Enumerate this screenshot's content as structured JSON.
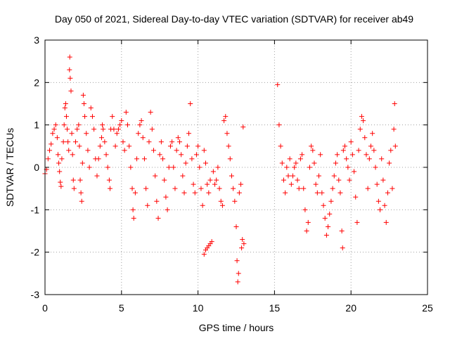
{
  "chart_data": {
    "type": "scatter",
    "title": "Day 050 of 2021, Sidereal Day-to-day VTEC variation (SDTVAR) for receiver ab49",
    "xlabel": "GPS time / hours",
    "ylabel": "SDTVAR / TECUs",
    "xlim": [
      0,
      25
    ],
    "ylim": [
      -3,
      3
    ],
    "xticks": [
      0,
      5,
      10,
      15,
      20,
      25
    ],
    "xtick_labels": [
      "0",
      "5",
      "10",
      "15",
      "20",
      "25"
    ],
    "yticks": [
      -3,
      -2,
      -1,
      0,
      1,
      2,
      3
    ],
    "ytick_labels": [
      "-3",
      "-2",
      "-1",
      "0",
      "1",
      "2",
      "3"
    ],
    "grid": true,
    "marker": "+",
    "color": "#ff0000",
    "series": [
      {
        "name": "SDTVAR",
        "points": [
          [
            0.0,
            -0.15
          ],
          [
            0.1,
            -0.05
          ],
          [
            0.2,
            0.2
          ],
          [
            0.3,
            0.4
          ],
          [
            0.4,
            0.55
          ],
          [
            0.5,
            0.8
          ],
          [
            0.6,
            0.9
          ],
          [
            0.7,
            1.0
          ],
          [
            0.8,
            0.7
          ],
          [
            0.85,
            0.3
          ],
          [
            0.9,
            0.1
          ],
          [
            0.95,
            -0.1
          ],
          [
            1.0,
            -0.35
          ],
          [
            1.05,
            -0.45
          ],
          [
            1.1,
            0.2
          ],
          [
            1.2,
            0.6
          ],
          [
            1.25,
            1.0
          ],
          [
            1.3,
            1.4
          ],
          [
            1.35,
            1.5
          ],
          [
            1.4,
            1.2
          ],
          [
            1.45,
            0.9
          ],
          [
            1.5,
            0.6
          ],
          [
            1.55,
            0.4
          ],
          [
            1.6,
            2.3
          ],
          [
            1.62,
            2.6
          ],
          [
            1.65,
            2.1
          ],
          [
            1.7,
            1.8
          ],
          [
            1.75,
            0.8
          ],
          [
            1.8,
            0.3
          ],
          [
            1.85,
            -0.3
          ],
          [
            1.9,
            -0.5
          ],
          [
            2.0,
            0.6
          ],
          [
            2.1,
            0.9
          ],
          [
            2.2,
            1.0
          ],
          [
            2.25,
            0.5
          ],
          [
            2.3,
            -0.3
          ],
          [
            2.35,
            -0.6
          ],
          [
            2.4,
            -0.8
          ],
          [
            2.45,
            0.1
          ],
          [
            2.5,
            1.7
          ],
          [
            2.55,
            1.5
          ],
          [
            2.6,
            1.2
          ],
          [
            2.7,
            0.8
          ],
          [
            2.8,
            0.4
          ],
          [
            2.9,
            0.0
          ],
          [
            3.0,
            1.4
          ],
          [
            3.1,
            1.2
          ],
          [
            3.2,
            0.9
          ],
          [
            3.3,
            0.2
          ],
          [
            3.4,
            -0.2
          ],
          [
            3.5,
            0.2
          ],
          [
            3.6,
            0.5
          ],
          [
            3.7,
            0.7
          ],
          [
            3.75,
            1.0
          ],
          [
            3.8,
            0.9
          ],
          [
            3.9,
            0.6
          ],
          [
            4.0,
            0.3
          ],
          [
            4.1,
            0.0
          ],
          [
            4.2,
            -0.3
          ],
          [
            4.25,
            -0.5
          ],
          [
            4.3,
            0.9
          ],
          [
            4.4,
            1.2
          ],
          [
            4.5,
            0.9
          ],
          [
            4.6,
            0.5
          ],
          [
            4.7,
            0.8
          ],
          [
            4.8,
            0.9
          ],
          [
            4.9,
            1.0
          ],
          [
            5.0,
            1.1
          ],
          [
            5.1,
            0.6
          ],
          [
            5.2,
            0.4
          ],
          [
            5.3,
            1.3
          ],
          [
            5.4,
            1.0
          ],
          [
            5.5,
            0.5
          ],
          [
            5.6,
            0.0
          ],
          [
            5.7,
            -0.5
          ],
          [
            5.75,
            -1.0
          ],
          [
            5.8,
            -1.2
          ],
          [
            5.9,
            -0.6
          ],
          [
            6.0,
            0.2
          ],
          [
            6.1,
            0.8
          ],
          [
            6.2,
            1.0
          ],
          [
            6.3,
            1.1
          ],
          [
            6.4,
            0.7
          ],
          [
            6.5,
            0.2
          ],
          [
            6.6,
            -0.5
          ],
          [
            6.7,
            -0.9
          ],
          [
            6.8,
            0.6
          ],
          [
            6.9,
            1.3
          ],
          [
            7.0,
            0.9
          ],
          [
            7.1,
            0.4
          ],
          [
            7.2,
            -0.2
          ],
          [
            7.3,
            -0.8
          ],
          [
            7.4,
            -1.2
          ],
          [
            7.5,
            0.3
          ],
          [
            7.6,
            0.6
          ],
          [
            7.7,
            0.2
          ],
          [
            7.8,
            -0.3
          ],
          [
            7.9,
            -0.7
          ],
          [
            8.0,
            -1.0
          ],
          [
            8.1,
            0.0
          ],
          [
            8.2,
            0.5
          ],
          [
            8.3,
            0.6
          ],
          [
            8.4,
            0.0
          ],
          [
            8.5,
            -0.5
          ],
          [
            8.6,
            0.4
          ],
          [
            8.7,
            0.7
          ],
          [
            8.8,
            0.6
          ],
          [
            8.9,
            0.3
          ],
          [
            9.0,
            -0.2
          ],
          [
            9.1,
            -0.6
          ],
          [
            9.2,
            0.1
          ],
          [
            9.3,
            0.5
          ],
          [
            9.4,
            0.8
          ],
          [
            9.5,
            1.5
          ],
          [
            9.6,
            0.2
          ],
          [
            9.7,
            -0.4
          ],
          [
            9.8,
            -0.6
          ],
          [
            9.9,
            0.3
          ],
          [
            10.0,
            0.5
          ],
          [
            10.1,
            0.0
          ],
          [
            10.2,
            -0.5
          ],
          [
            10.3,
            -0.9
          ],
          [
            10.4,
            0.4
          ],
          [
            10.5,
            0.1
          ],
          [
            10.6,
            -0.4
          ],
          [
            10.7,
            -0.6
          ],
          [
            10.8,
            -0.3
          ],
          [
            10.4,
            -2.05
          ],
          [
            10.5,
            -1.95
          ],
          [
            10.6,
            -1.9
          ],
          [
            10.7,
            -1.85
          ],
          [
            10.8,
            -1.8
          ],
          [
            10.9,
            -1.75
          ],
          [
            11.0,
            -0.1
          ],
          [
            11.1,
            -0.4
          ],
          [
            11.2,
            -0.3
          ],
          [
            11.3,
            0.0
          ],
          [
            11.4,
            -0.5
          ],
          [
            11.5,
            -0.8
          ],
          [
            11.6,
            -0.9
          ],
          [
            11.7,
            1.1
          ],
          [
            11.8,
            1.2
          ],
          [
            11.9,
            0.8
          ],
          [
            12.0,
            0.5
          ],
          [
            12.1,
            0.2
          ],
          [
            12.2,
            -0.2
          ],
          [
            12.3,
            -0.5
          ],
          [
            12.4,
            -0.8
          ],
          [
            12.5,
            -1.4
          ],
          [
            12.55,
            -2.2
          ],
          [
            12.6,
            -2.7
          ],
          [
            12.65,
            -2.5
          ],
          [
            12.7,
            -0.6
          ],
          [
            12.8,
            -0.4
          ],
          [
            12.85,
            -1.9
          ],
          [
            12.9,
            -1.7
          ],
          [
            12.95,
            0.95
          ],
          [
            13.0,
            -1.8
          ],
          [
            15.2,
            1.95
          ],
          [
            15.3,
            1.0
          ],
          [
            15.4,
            0.5
          ],
          [
            15.5,
            0.1
          ],
          [
            15.6,
            -0.3
          ],
          [
            15.7,
            -0.6
          ],
          [
            15.8,
            0.0
          ],
          [
            15.9,
            -0.2
          ],
          [
            16.0,
            0.2
          ],
          [
            16.1,
            -0.4
          ],
          [
            16.2,
            -0.2
          ],
          [
            16.3,
            0.0
          ],
          [
            16.4,
            0.1
          ],
          [
            16.5,
            -0.3
          ],
          [
            16.6,
            -0.5
          ],
          [
            16.7,
            0.2
          ],
          [
            16.8,
            0.3
          ],
          [
            16.9,
            -0.5
          ],
          [
            17.0,
            -1.0
          ],
          [
            17.1,
            -1.5
          ],
          [
            17.2,
            -1.3
          ],
          [
            17.3,
            0.0
          ],
          [
            17.4,
            0.5
          ],
          [
            17.5,
            0.4
          ],
          [
            17.6,
            0.1
          ],
          [
            17.7,
            -0.4
          ],
          [
            17.8,
            -0.6
          ],
          [
            17.9,
            -0.2
          ],
          [
            18.0,
            0.3
          ],
          [
            18.1,
            -0.6
          ],
          [
            18.2,
            -0.9
          ],
          [
            18.3,
            -1.2
          ],
          [
            18.4,
            -1.6
          ],
          [
            18.5,
            -1.4
          ],
          [
            18.6,
            -1.1
          ],
          [
            18.7,
            -0.8
          ],
          [
            18.8,
            -0.5
          ],
          [
            18.9,
            -0.2
          ],
          [
            19.0,
            0.1
          ],
          [
            19.1,
            0.3
          ],
          [
            19.2,
            -0.3
          ],
          [
            19.3,
            -0.6
          ],
          [
            19.4,
            -1.5
          ],
          [
            19.45,
            -1.9
          ],
          [
            19.5,
            0.4
          ],
          [
            19.6,
            0.5
          ],
          [
            19.7,
            0.2
          ],
          [
            19.8,
            0.0
          ],
          [
            19.9,
            -0.3
          ],
          [
            20.0,
            0.6
          ],
          [
            20.1,
            0.3
          ],
          [
            20.2,
            -0.1
          ],
          [
            20.3,
            -0.7
          ],
          [
            20.4,
            -1.3
          ],
          [
            20.5,
            0.4
          ],
          [
            20.6,
            0.9
          ],
          [
            20.7,
            1.2
          ],
          [
            20.8,
            1.1
          ],
          [
            20.9,
            0.7
          ],
          [
            21.0,
            0.3
          ],
          [
            21.1,
            -0.5
          ],
          [
            21.2,
            0.2
          ],
          [
            21.3,
            0.5
          ],
          [
            21.4,
            0.8
          ],
          [
            21.5,
            0.4
          ],
          [
            21.6,
            0.0
          ],
          [
            21.7,
            -0.4
          ],
          [
            21.8,
            -0.8
          ],
          [
            21.9,
            -1.0
          ],
          [
            22.0,
            0.2
          ],
          [
            22.1,
            -0.3
          ],
          [
            22.2,
            -0.9
          ],
          [
            22.3,
            -1.3
          ],
          [
            22.4,
            -0.6
          ],
          [
            22.5,
            0.1
          ],
          [
            22.6,
            0.4
          ],
          [
            22.7,
            -0.5
          ],
          [
            22.8,
            0.9
          ],
          [
            22.85,
            1.5
          ],
          [
            22.9,
            0.5
          ]
        ]
      }
    ]
  }
}
